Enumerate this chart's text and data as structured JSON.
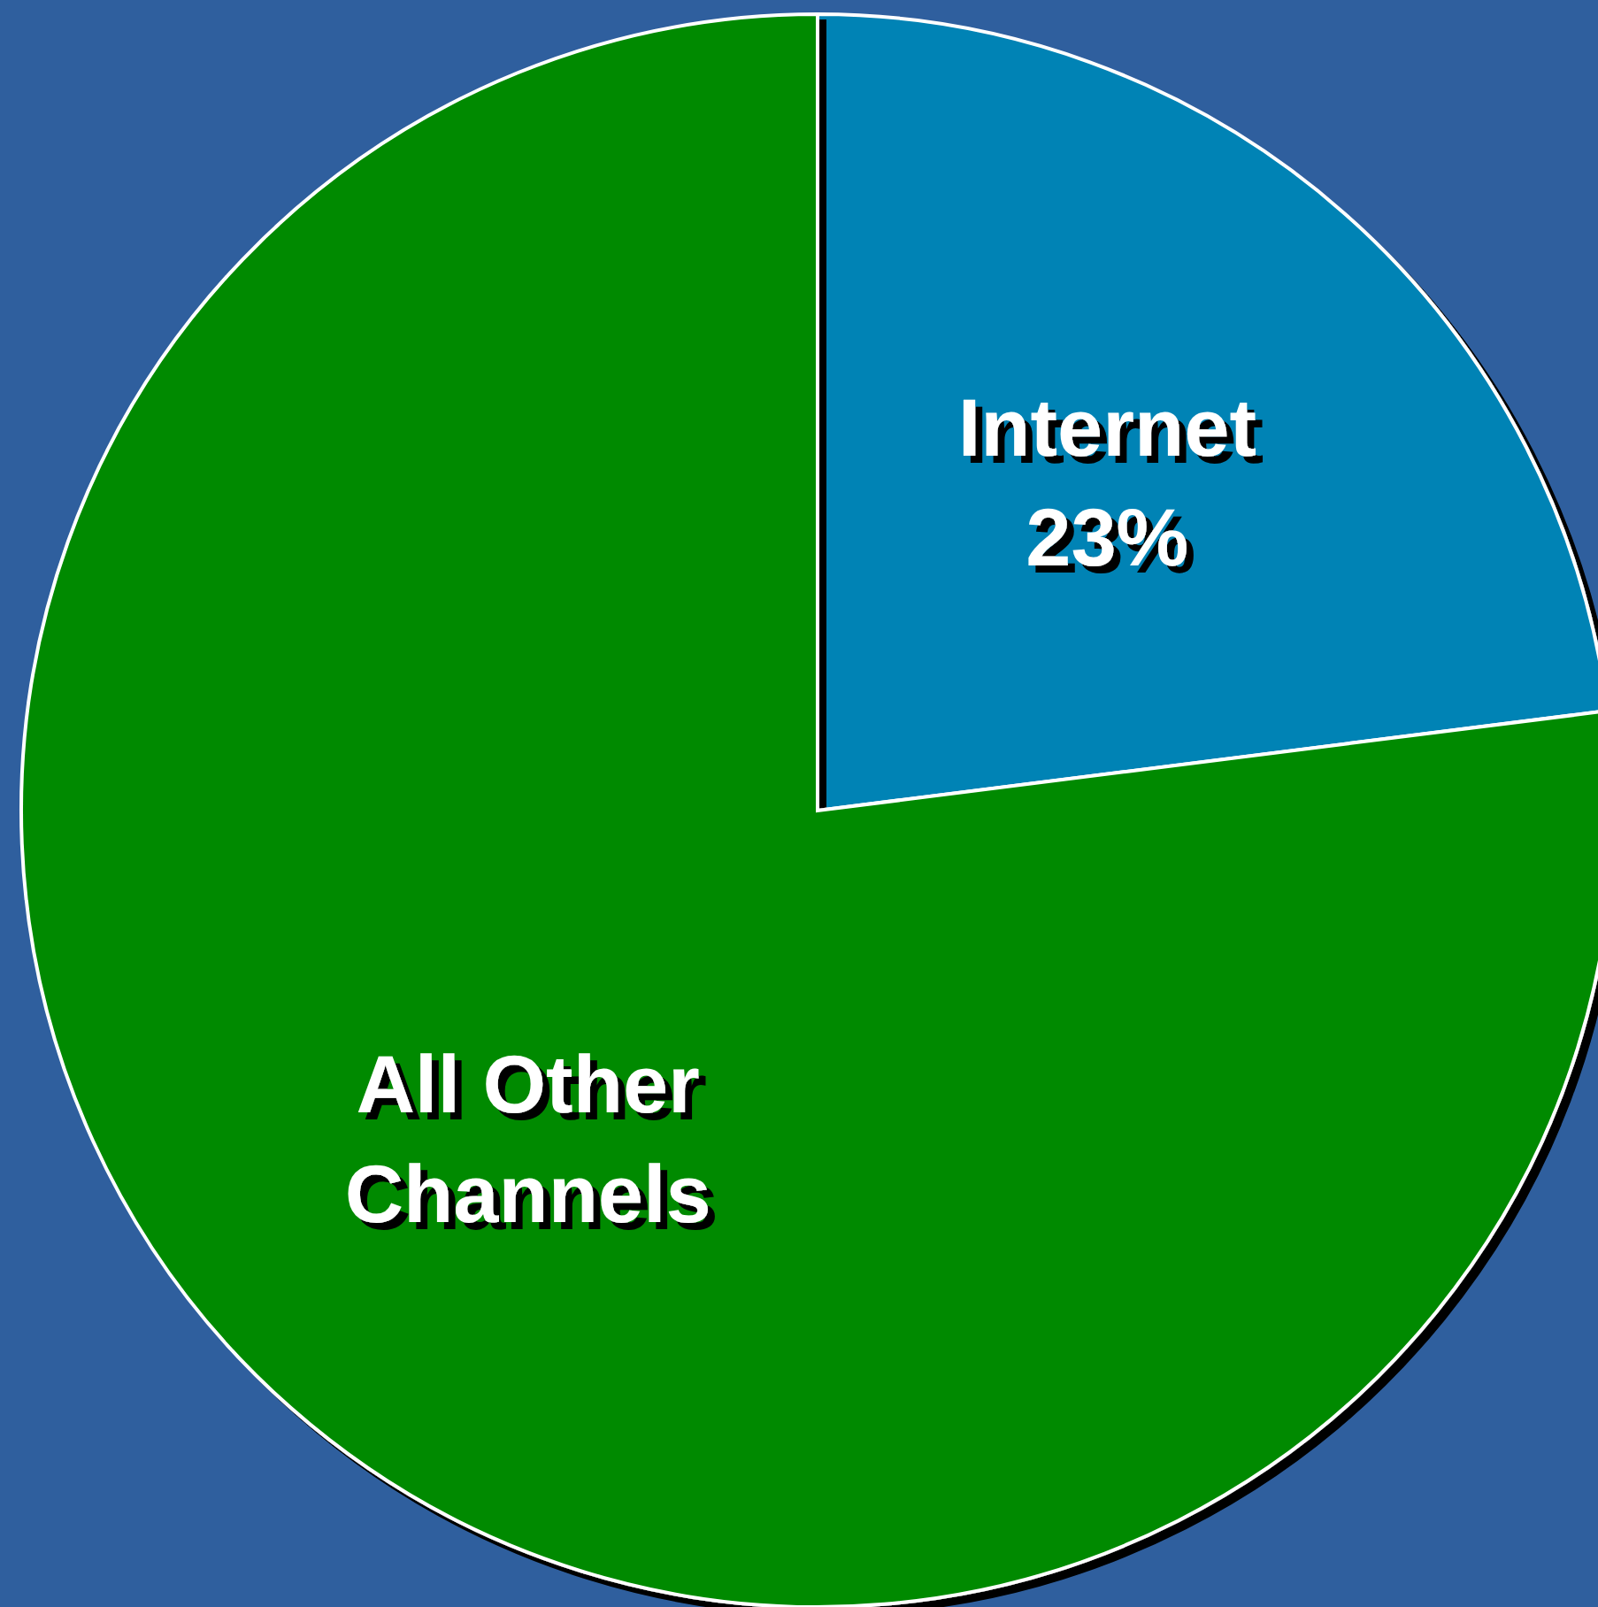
{
  "chart_data": {
    "type": "pie",
    "categories": [
      "Internet",
      "All Other Channels"
    ],
    "values": [
      23,
      77
    ],
    "colors": [
      "#0083b5",
      "#008a00"
    ],
    "value_labels": [
      "23%",
      null
    ]
  }
}
